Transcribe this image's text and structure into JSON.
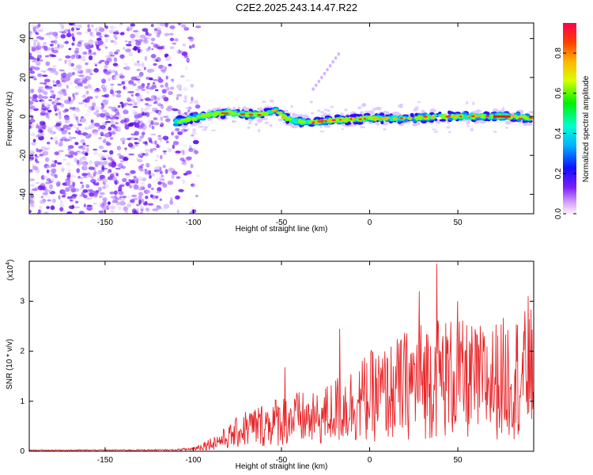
{
  "title": "C2E2.2025.243.14.47.R22",
  "colors": {
    "snr_line": "#e8262a",
    "background_noise": "#8a3cf0"
  },
  "chart_data": [
    {
      "type": "heatmap",
      "title": "C2E2.2025.243.14.47.R22",
      "xlabel": "Height of straight line (km)",
      "ylabel": "Frequency (Hz)",
      "xlim": [
        -193,
        93
      ],
      "ylim": [
        -50,
        48
      ],
      "xticks": [
        -150,
        -100,
        -50,
        0,
        50
      ],
      "yticks": [
        -40,
        -20,
        0,
        20,
        40
      ],
      "colorbar": {
        "label": "Normalized spectral amplitude",
        "range": [
          0,
          0.95
        ],
        "ticks": [
          0.0,
          0.2,
          0.4,
          0.6,
          0.8
        ]
      },
      "ridge": [
        {
          "x": -110,
          "y": -3
        },
        {
          "x": -100,
          "y": -1
        },
        {
          "x": -90,
          "y": 1
        },
        {
          "x": -80,
          "y": 2
        },
        {
          "x": -70,
          "y": 1
        },
        {
          "x": -60,
          "y": 1
        },
        {
          "x": -53,
          "y": 3
        },
        {
          "x": -45,
          "y": -2
        },
        {
          "x": -35,
          "y": -3
        },
        {
          "x": -20,
          "y": -2
        },
        {
          "x": 0,
          "y": -1
        },
        {
          "x": 20,
          "y": -1
        },
        {
          "x": 40,
          "y": 0
        },
        {
          "x": 60,
          "y": 0
        },
        {
          "x": 80,
          "y": 0
        },
        {
          "x": 92,
          "y": -1
        }
      ],
      "noise_region": [
        -193,
        -105
      ]
    },
    {
      "type": "line",
      "xlabel": "Height of straight line (km)",
      "ylabel": "SNR (10 * v/v)",
      "y_multiplier": "(x10",
      "y_multiplier_exp": "4",
      "xlim": [
        -193,
        93
      ],
      "ylim": [
        0,
        3.8
      ],
      "xticks": [
        -150,
        -100,
        -50,
        0,
        50
      ],
      "yticks": [
        0,
        1,
        2,
        3
      ],
      "series": [
        {
          "name": "SNR",
          "envelope": [
            {
              "x": -193,
              "v": 0.02
            },
            {
              "x": -110,
              "v": 0.03
            },
            {
              "x": -100,
              "v": 0.08
            },
            {
              "x": -90,
              "v": 0.25
            },
            {
              "x": -80,
              "v": 0.45
            },
            {
              "x": -70,
              "v": 0.75
            },
            {
              "x": -60,
              "v": 0.85
            },
            {
              "x": -50,
              "v": 1.0
            },
            {
              "x": -40,
              "v": 1.05
            },
            {
              "x": -30,
              "v": 1.0
            },
            {
              "x": -20,
              "v": 1.3
            },
            {
              "x": -10,
              "v": 1.5
            },
            {
              "x": 0,
              "v": 1.75
            },
            {
              "x": 10,
              "v": 1.85
            },
            {
              "x": 20,
              "v": 2.1
            },
            {
              "x": 30,
              "v": 2.3
            },
            {
              "x": 40,
              "v": 2.4
            },
            {
              "x": 50,
              "v": 2.3
            },
            {
              "x": 60,
              "v": 2.2
            },
            {
              "x": 70,
              "v": 2.25
            },
            {
              "x": 80,
              "v": 2.4
            },
            {
              "x": 93,
              "v": 2.5
            }
          ],
          "spikes": [
            {
              "x": -48,
              "v": 1.68
            },
            {
              "x": -17,
              "v": 2.45
            },
            {
              "x": 28,
              "v": 3.2
            },
            {
              "x": 38,
              "v": 3.75
            },
            {
              "x": 50,
              "v": 3.0
            },
            {
              "x": 90,
              "v": 3.1
            }
          ]
        }
      ]
    }
  ]
}
